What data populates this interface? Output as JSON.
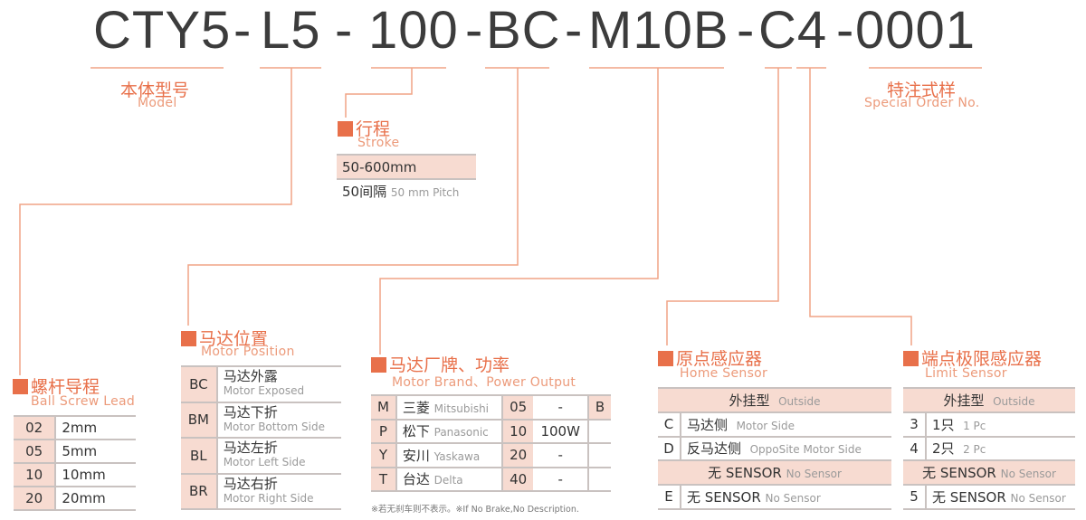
{
  "code": {
    "segments": [
      "CTY5",
      "L5",
      "100",
      "BC",
      "M10B",
      "C4",
      "0001"
    ],
    "separator": "-"
  },
  "model": {
    "cn": "本体型号",
    "en": "Model"
  },
  "special": {
    "cn": "特注式样",
    "en": "Special Order No."
  },
  "stroke": {
    "cn": "行程",
    "en": "Stroke",
    "range": "50-600mm",
    "pitch_cn": "50间隔",
    "pitch_en": "50 mm Pitch"
  },
  "lead": {
    "cn": "螺杆导程",
    "en": "Ball Screw Lead",
    "rows": [
      [
        "02",
        "2mm"
      ],
      [
        "05",
        "5mm"
      ],
      [
        "10",
        "10mm"
      ],
      [
        "20",
        "20mm"
      ]
    ]
  },
  "position": {
    "cn": "马达位置",
    "en": "Motor Position",
    "rows": [
      {
        "code": "BC",
        "cn": "马达外露",
        "en": "Motor Exposed"
      },
      {
        "code": "BM",
        "cn": "马达下折",
        "en": "Motor Bottom Side"
      },
      {
        "code": "BL",
        "cn": "马达左折",
        "en": "Motor Left Side"
      },
      {
        "code": "BR",
        "cn": "马达右折",
        "en": "Motor Right Side"
      }
    ]
  },
  "brand": {
    "cn": "马达厂牌、功率",
    "en": "Motor Brand、Power Output",
    "rows": [
      {
        "code": "M",
        "cn": "三菱",
        "en": "Mitsubishi",
        "num": "05",
        "power": "-",
        "b": "B"
      },
      {
        "code": "P",
        "cn": "松下",
        "en": "Panasonic",
        "num": "10",
        "power": "100W",
        "b": ""
      },
      {
        "code": "Y",
        "cn": "安川",
        "en": "Yaskawa",
        "num": "20",
        "power": "-",
        "b": ""
      },
      {
        "code": "T",
        "cn": "台达",
        "en": "Delta",
        "num": "40",
        "power": "-",
        "b": ""
      }
    ],
    "note": "※若无刹车则不表示。※If No Brake,No Description."
  },
  "home": {
    "cn": "原点感应器",
    "en": "Home Sensor",
    "outside_cn": "外挂型",
    "outside_en": "Outside",
    "rows": [
      {
        "code": "C",
        "cn": "马达侧",
        "en": "Motor Side"
      },
      {
        "code": "D",
        "cn": "反马达侧",
        "en": "OppoSite Motor Side"
      }
    ],
    "none_cn": "无 SENSOR",
    "none_en": "No Sensor",
    "e": {
      "code": "E",
      "cn": "无 SENSOR",
      "en": "No Sensor"
    }
  },
  "limit": {
    "cn": "端点极限感应器",
    "en": "Limit Sensor",
    "outside_cn": "外挂型",
    "outside_en": "Outside",
    "rows": [
      {
        "code": "3",
        "cn": "1只",
        "en": "1 Pc"
      },
      {
        "code": "4",
        "cn": "2只",
        "en": "2 Pc"
      }
    ],
    "none_cn": "无 SENSOR",
    "none_en": "No Sensor",
    "e": {
      "code": "5",
      "cn": "无 SENSOR",
      "en": "No Sensor"
    }
  },
  "colors": {
    "accent": "#e8704a",
    "cell": "#f7dbd1",
    "line": "#f0a485"
  }
}
